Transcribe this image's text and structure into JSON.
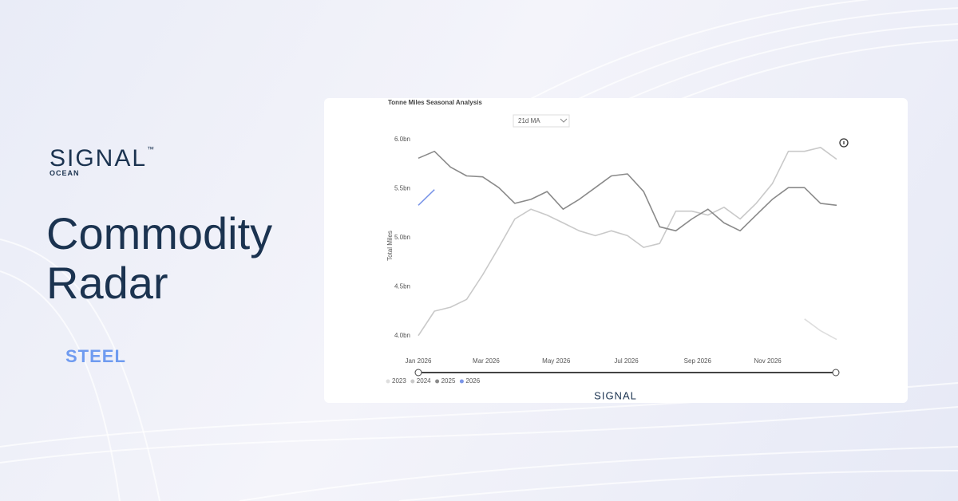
{
  "brand": {
    "logo": "SIGNAL",
    "trademark": "™",
    "sub": "OCEAN"
  },
  "headline": {
    "line1": "Commodity",
    "line2": "Radar"
  },
  "tag": "STEEL",
  "footer_logo": "SIGNAL",
  "chart_data": {
    "type": "line",
    "title": "Tonne Miles Seasonal Analysis",
    "dropdown": "21d MA",
    "ylabel": "Total Miles",
    "x": [
      0,
      14,
      28,
      42,
      56,
      70,
      84,
      98,
      112,
      126,
      140,
      154,
      168,
      182,
      196,
      210,
      224,
      238,
      252,
      266,
      280,
      294,
      308,
      322,
      336,
      350,
      364
    ],
    "xlim": [
      0,
      364
    ],
    "xticks": [
      {
        "value": 0,
        "label": "Jan 2026"
      },
      {
        "value": 59,
        "label": "Mar 2026"
      },
      {
        "value": 120,
        "label": "May 2026"
      },
      {
        "value": 181,
        "label": "Jul 2026"
      },
      {
        "value": 243,
        "label": "Sep 2026"
      },
      {
        "value": 304,
        "label": "Nov 2026"
      }
    ],
    "ylim": [
      3.9,
      6.0
    ],
    "yticks": [
      {
        "value": 4.0,
        "label": "4.0bn"
      },
      {
        "value": 4.5,
        "label": "4.5bn"
      },
      {
        "value": 5.0,
        "label": "5.0bn"
      },
      {
        "value": 5.5,
        "label": "5.5bn"
      },
      {
        "value": 6.0,
        "label": "6.0bn"
      }
    ],
    "grid": false,
    "legend": "bottom-left",
    "series": [
      {
        "name": "2023",
        "color": "#dedede",
        "values": [
          null,
          null,
          null,
          null,
          null,
          null,
          null,
          null,
          null,
          null,
          null,
          null,
          null,
          null,
          null,
          null,
          null,
          null,
          null,
          null,
          null,
          null,
          null,
          null,
          4.17,
          4.05,
          3.96
        ]
      },
      {
        "name": "2024",
        "color": "#c9c9c9",
        "values": [
          4.0,
          4.25,
          4.29,
          4.37,
          4.62,
          4.9,
          5.19,
          5.29,
          5.23,
          5.15,
          5.07,
          5.02,
          5.07,
          5.02,
          4.9,
          4.94,
          5.27,
          5.27,
          5.23,
          5.31,
          5.19,
          5.35,
          5.55,
          5.88,
          5.88,
          5.92,
          5.8
        ]
      },
      {
        "name": "2025",
        "color": "#8a8a8a",
        "values": [
          5.81,
          5.88,
          5.72,
          5.63,
          5.62,
          5.51,
          5.35,
          5.39,
          5.47,
          5.29,
          5.39,
          5.51,
          5.63,
          5.65,
          5.47,
          5.11,
          5.07,
          5.19,
          5.29,
          5.15,
          5.07,
          5.23,
          5.39,
          5.51,
          5.51,
          5.35,
          5.33
        ]
      },
      {
        "name": "2026",
        "color": "#7b96e8",
        "values": [
          5.33,
          5.49,
          null,
          null,
          null,
          null,
          null,
          null,
          null,
          null,
          null,
          null,
          null,
          null,
          null,
          null,
          null,
          null,
          null,
          null,
          null,
          null,
          null,
          null,
          null,
          null,
          null
        ]
      }
    ]
  }
}
